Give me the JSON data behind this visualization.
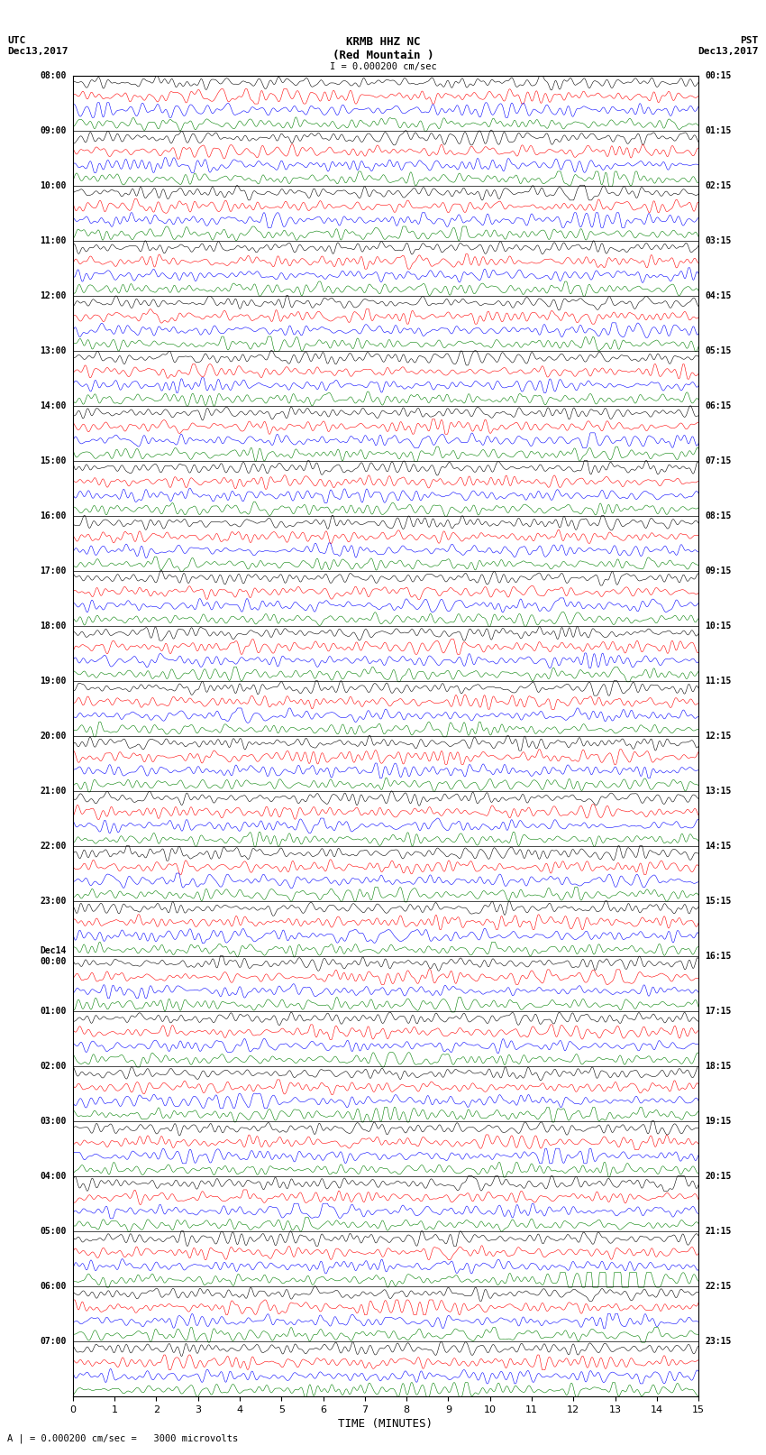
{
  "title_center": "KRMB HHZ NC\n(Red Mountain )",
  "title_left": "UTC\nDec13,2017",
  "title_right": "PST\nDec13,2017",
  "scale_label": "I = 0.000200 cm/sec",
  "bottom_label": "A | = 0.000200 cm/sec =   3000 microvolts",
  "xlabel": "TIME (MINUTES)",
  "xlim": [
    0,
    15
  ],
  "xticks": [
    0,
    1,
    2,
    3,
    4,
    5,
    6,
    7,
    8,
    9,
    10,
    11,
    12,
    13,
    14,
    15
  ],
  "left_times": [
    "08:00",
    "09:00",
    "10:00",
    "11:00",
    "12:00",
    "13:00",
    "14:00",
    "15:00",
    "16:00",
    "17:00",
    "18:00",
    "19:00",
    "20:00",
    "21:00",
    "22:00",
    "23:00",
    "Dec14\n00:00",
    "01:00",
    "02:00",
    "03:00",
    "04:00",
    "05:00",
    "06:00",
    "07:00"
  ],
  "right_times": [
    "00:15",
    "01:15",
    "02:15",
    "03:15",
    "04:15",
    "05:15",
    "06:15",
    "07:15",
    "08:15",
    "09:15",
    "10:15",
    "11:15",
    "12:15",
    "13:15",
    "14:15",
    "15:15",
    "16:15",
    "17:15",
    "18:15",
    "19:15",
    "20:15",
    "21:15",
    "22:15",
    "23:15"
  ],
  "trace_colors": [
    "black",
    "red",
    "blue",
    "green"
  ],
  "num_hours": 24,
  "traces_per_hour": 4,
  "fig_width": 8.5,
  "fig_height": 16.13,
  "bg_color": "white",
  "plot_bg": "white",
  "trace_amplitude": 0.42,
  "noise_amplitude": 0.18,
  "special_hour": 21,
  "special_col": 3
}
